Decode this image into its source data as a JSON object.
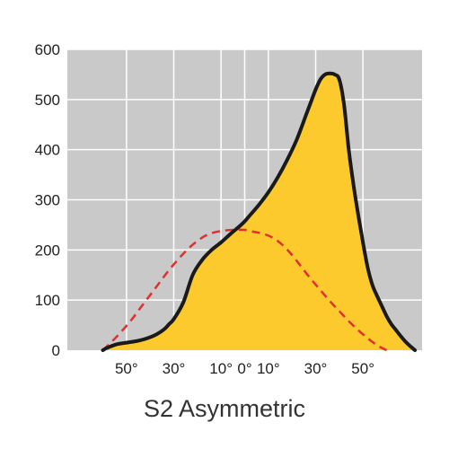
{
  "chart_data": {
    "type": "area",
    "title": "S2 Asymmetric",
    "xlabel": "",
    "ylabel": "",
    "xlim": [
      -75,
      75
    ],
    "ylim": [
      0,
      600
    ],
    "x_tick_values": [
      -50,
      -30,
      -10,
      0,
      10,
      30,
      50
    ],
    "x_tick_labels": [
      "50°",
      "30°",
      "10°",
      "0°",
      "10°",
      "30°",
      "50°"
    ],
    "y_ticks": [
      0,
      100,
      200,
      300,
      400,
      500,
      600
    ],
    "grid": true,
    "colors": {
      "background": "#c9c9c9",
      "grid": "#ffffff",
      "fill": "#fdca2d",
      "outline": "#1a1a1a",
      "dashed": "#e0302e"
    },
    "series": [
      {
        "style": "solid-filled",
        "x": [
          -60,
          -58,
          -54,
          -50,
          -44,
          -38,
          -34,
          -32,
          -30,
          -26,
          -22,
          -18,
          -14,
          -10,
          -6,
          -2,
          0,
          2,
          6,
          10,
          14,
          18,
          22,
          26,
          28,
          30,
          32,
          34,
          36,
          38,
          40,
          42,
          44,
          46,
          48,
          50,
          52,
          54,
          56,
          58,
          60,
          62,
          64,
          66,
          68,
          70,
          72
        ],
        "y": [
          0,
          5,
          12,
          15,
          20,
          30,
          42,
          52,
          62,
          95,
          150,
          180,
          200,
          215,
          232,
          248,
          257,
          268,
          290,
          315,
          345,
          380,
          420,
          470,
          495,
          520,
          540,
          550,
          552,
          550,
          540,
          490,
          400,
          330,
          270,
          215,
          165,
          130,
          108,
          88,
          68,
          52,
          40,
          28,
          17,
          8,
          0
        ]
      },
      {
        "style": "dashed",
        "x": [
          -60,
          -56,
          -52,
          -48,
          -44,
          -40,
          -36,
          -32,
          -28,
          -24,
          -20,
          -16,
          -12,
          -8,
          -4,
          0,
          4,
          8,
          12,
          16,
          20,
          24,
          28,
          32,
          36,
          40,
          44,
          48,
          52,
          56,
          60
        ],
        "y": [
          0,
          18,
          38,
          60,
          85,
          110,
          135,
          160,
          182,
          202,
          218,
          230,
          236,
          239,
          240,
          240,
          236,
          232,
          224,
          210,
          190,
          166,
          142,
          120,
          98,
          78,
          58,
          40,
          24,
          10,
          0
        ]
      }
    ]
  }
}
